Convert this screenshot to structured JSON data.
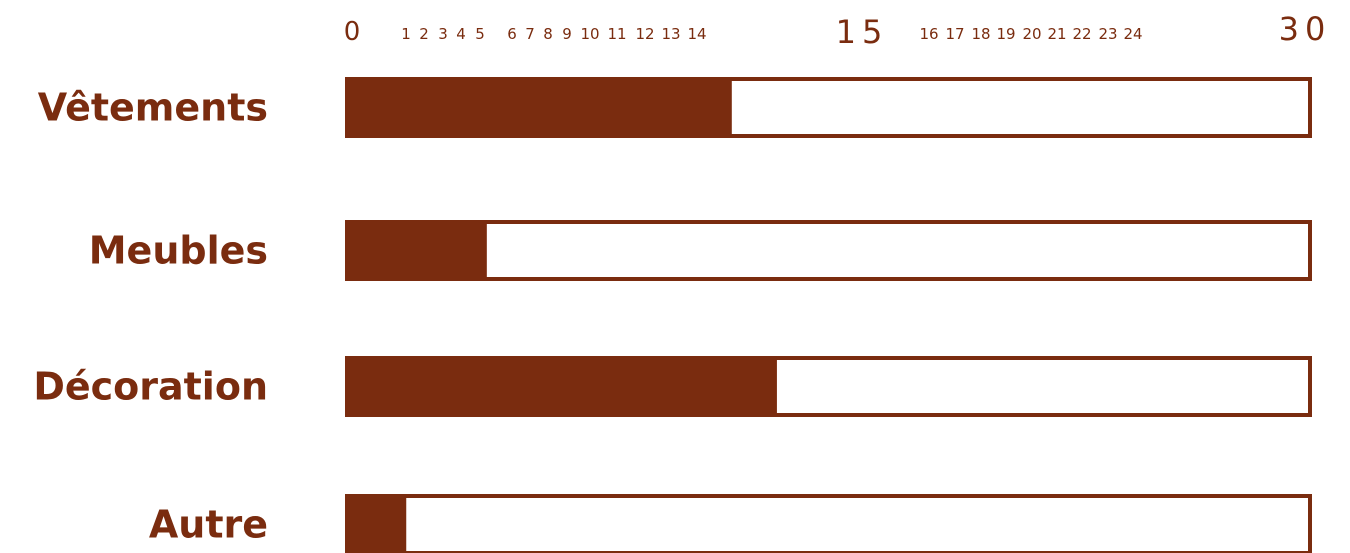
{
  "colors": {
    "bar_fill": "#7a2c0f",
    "bar_outline": "#7a2c0f",
    "track_fill": "#ffffff",
    "text": "#7a2c0f"
  },
  "chart_data": {
    "type": "bar",
    "orientation": "horizontal",
    "categories": [
      "Vêtements",
      "Meubles",
      "Décoration",
      "Autre"
    ],
    "values": [
      12,
      4.4,
      13.4,
      1.9
    ],
    "xlim": [
      0,
      30
    ],
    "ticks": {
      "values": [
        0,
        1,
        2,
        3,
        4,
        5,
        6,
        7,
        8,
        9,
        10,
        11,
        12,
        13,
        14,
        15,
        16,
        17,
        18,
        19,
        20,
        21,
        22,
        23,
        24,
        30
      ],
      "labels": [
        "0",
        "1",
        "2",
        "3",
        "4",
        "5",
        "6",
        "7",
        "8",
        "9",
        "10",
        "11",
        "12",
        "13",
        "14",
        "15",
        "16",
        "17",
        "18",
        "19",
        "20",
        "21",
        "22",
        "23",
        "24",
        "30"
      ],
      "major": [
        0,
        15,
        30
      ],
      "position": "top"
    },
    "title": "",
    "xlabel": "",
    "ylabel": "",
    "grid": false,
    "legend": "none"
  }
}
